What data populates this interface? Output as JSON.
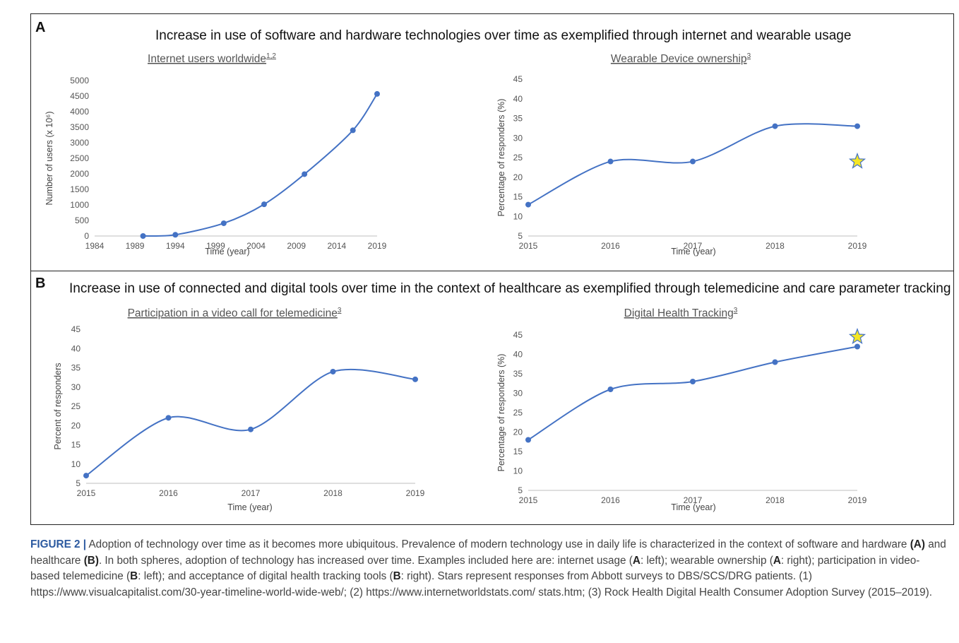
{
  "panels": {
    "a": {
      "letter": "A",
      "heading": "Increase in use of software and hardware technologies  over time as exemplified through internet and wearable usage"
    },
    "b": {
      "letter": "B",
      "heading": "Increase in use of connected and digital tools over time in the context of healthcare as exemplified through telemedicine and care parameter tracking"
    }
  },
  "colors": {
    "series": "#4472c4",
    "star_fill": "#f5e625",
    "star_stroke": "#4472c4",
    "axis": "#bfbfbf"
  },
  "chart_data": [
    {
      "id": "internet",
      "type": "line",
      "title": "Internet users worldwide",
      "title_sup": "1,2",
      "xlabel": "Time (year)",
      "ylabel": "Number of users (x 10⁶)",
      "x_ticks": [
        "1984",
        "1989",
        "1994",
        "1999",
        "2004",
        "2009",
        "2014",
        "2019"
      ],
      "y_ticks": [
        "0",
        "500",
        "1000",
        "1500",
        "2000",
        "2500",
        "3000",
        "3500",
        "4000",
        "4500",
        "5000"
      ],
      "xlim": [
        1984,
        2019
      ],
      "ylim": [
        0,
        5000
      ],
      "points": [
        [
          1990,
          0
        ],
        [
          1994,
          40
        ],
        [
          2000,
          410
        ],
        [
          2005,
          1020
        ],
        [
          2010,
          1990
        ],
        [
          2016,
          3400
        ],
        [
          2019,
          4570
        ]
      ],
      "star": null
    },
    {
      "id": "wearable",
      "type": "line",
      "title": "Wearable Device ownership",
      "title_sup": "3",
      "xlabel": "Time (year)",
      "ylabel": "Percentage of responders (%)",
      "x_ticks": [
        "2015",
        "2016",
        "2017",
        "2018",
        "2019"
      ],
      "y_ticks": [
        "5",
        "10",
        "15",
        "20",
        "25",
        "30",
        "35",
        "40",
        "45"
      ],
      "xlim": [
        2015,
        2019
      ],
      "ylim": [
        5,
        45
      ],
      "points": [
        [
          2015,
          13
        ],
        [
          2016,
          24
        ],
        [
          2017,
          24
        ],
        [
          2018,
          33
        ],
        [
          2019,
          33
        ]
      ],
      "star": [
        2019,
        24
      ]
    },
    {
      "id": "telemedicine",
      "type": "line",
      "title": "Participation in a video call for telemedicine",
      "title_sup": "3",
      "xlabel": "Time (year)",
      "ylabel": "Percent of responders",
      "x_ticks": [
        "2015",
        "2016",
        "2017",
        "2018",
        "2019"
      ],
      "y_ticks": [
        "5",
        "10",
        "15",
        "20",
        "25",
        "30",
        "35",
        "40",
        "45"
      ],
      "xlim": [
        2015,
        2019
      ],
      "ylim": [
        5,
        45
      ],
      "points": [
        [
          2015,
          7
        ],
        [
          2016,
          22
        ],
        [
          2017,
          19
        ],
        [
          2018,
          34
        ],
        [
          2019,
          32
        ]
      ],
      "star": null
    },
    {
      "id": "tracking",
      "type": "line",
      "title": "Digital Health Tracking",
      "title_sup": "3",
      "xlabel": "Time (year)",
      "ylabel": "Percentage of responders (%)",
      "x_ticks": [
        "2015",
        "2016",
        "2017",
        "2018",
        "2019"
      ],
      "y_ticks": [
        "5",
        "10",
        "15",
        "20",
        "25",
        "30",
        "35",
        "40",
        "45"
      ],
      "xlim": [
        2015,
        2019
      ],
      "ylim": [
        5,
        45
      ],
      "points": [
        [
          2015,
          18
        ],
        [
          2016,
          31
        ],
        [
          2017,
          33
        ],
        [
          2018,
          38
        ],
        [
          2019,
          42
        ]
      ],
      "star": [
        2019,
        44.5
      ]
    }
  ],
  "caption": {
    "label": "FIGURE 2 |",
    "s1": " Adoption of technology over time as it becomes more ubiquitous. Prevalence of modern technology use in daily life is characterized in the context of software and hardware ",
    "ref_a": "(A)",
    "s2": " and healthcare ",
    "ref_b": "(B)",
    "s3": ". In both spheres, adoption of technology has increased over time. Examples included here are: internet usage (",
    "a1": "A",
    "s4": ": left); wearable ownership (",
    "a2": "A",
    "s5": ": right); participation in video-based telemedicine (",
    "b1": "B",
    "s6": ": left); and acceptance of digital health tracking tools (",
    "b2": "B",
    "s7": ": right). Stars represent responses from Abbott surveys to DBS/SCS/DRG patients. (1) https://www.visualcapitalist.com/30-year-timeline-world-wide-web/; (2) https://www.internetworldstats.com/ stats.htm; (3) Rock Health Digital Health Consumer Adoption Survey (2015–2019)."
  }
}
